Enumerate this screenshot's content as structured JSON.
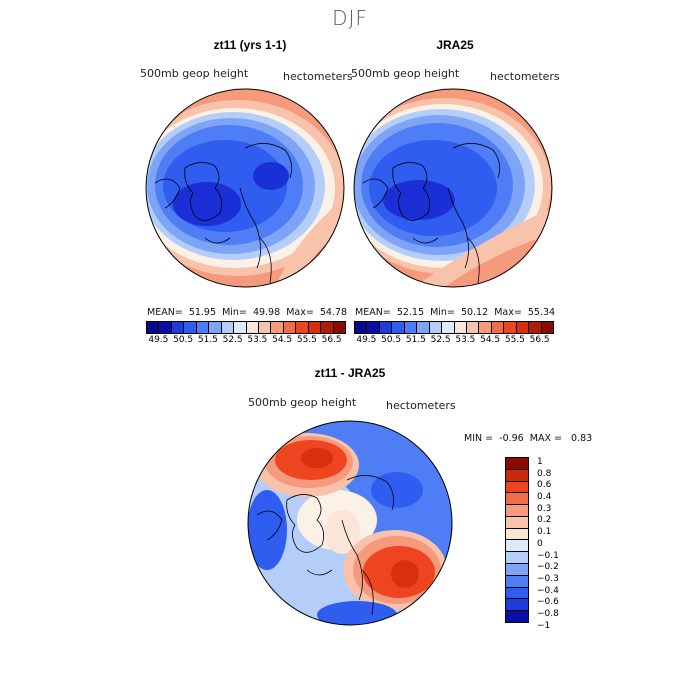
{
  "figure": {
    "title": "DJF"
  },
  "panels": [
    {
      "title": "zt11 (yrs 1-1)",
      "variable": "500mb geop height",
      "units": "hectometers",
      "stats": {
        "mean_label": "MEAN=",
        "mean": "51.95",
        "min_label": "Min=",
        "min": "49.98",
        "max_label": "Max=",
        "max": "54.78"
      }
    },
    {
      "title": "JRA25",
      "variable": "500mb geop height",
      "units": "hectometers",
      "stats": {
        "mean_label": "MEAN=",
        "mean": "52.15",
        "min_label": "Min=",
        "min": "50.12",
        "max_label": "Max=",
        "max": "55.34"
      }
    }
  ],
  "colorbar_abs": {
    "labels": [
      "49.5",
      "50.5",
      "51.5",
      "52.5",
      "53.5",
      "54.5",
      "55.5",
      "56.5"
    ],
    "colors": [
      "#08088a",
      "#0c0ca8",
      "#1e3cd8",
      "#2f5df0",
      "#4f7df5",
      "#7ea4f7",
      "#b4cdf9",
      "#ddeafc",
      "#fbe4d8",
      "#f8c2ab",
      "#f59a7c",
      "#f26c4a",
      "#ef4420",
      "#d8300f",
      "#b01b06",
      "#8a0a02"
    ]
  },
  "diff_panel": {
    "title": "zt11 - JRA25",
    "variable": "500mb geop height",
    "units": "hectometers",
    "stats": {
      "min_label": "MIN =",
      "min": "-0.96",
      "max_label": "MAX =",
      "max": "0.83"
    },
    "colorbar_labels": [
      "1",
      "0.8",
      "0.6",
      "0.4",
      "0.3",
      "0.2",
      "0.1",
      "0",
      "−0.1",
      "−0.2",
      "−0.3",
      "−0.4",
      "−0.6",
      "−0.8",
      "−1"
    ],
    "colorbar_colors": [
      "#8a0a02",
      "#c82a0c",
      "#ef4420",
      "#f26c4a",
      "#f59a7c",
      "#f8c2ab",
      "#fbe4d8",
      "#ddeafc",
      "#b4cdf9",
      "#7ea4f7",
      "#4f7df5",
      "#2f5df0",
      "#1e3cd8",
      "#0c0ca8"
    ]
  },
  "map_colors": {
    "deep_blue": "#1a2fd6",
    "blue": "#2f5df0",
    "mid_blue": "#4f7df5",
    "light_blue": "#7ea4f7",
    "pale_blue": "#b4cdf9",
    "cream": "#fbf1e6",
    "pale_red": "#f8c2ab",
    "light_red": "#f59a7c",
    "red": "#ef4420",
    "dark_red": "#d8300f"
  }
}
